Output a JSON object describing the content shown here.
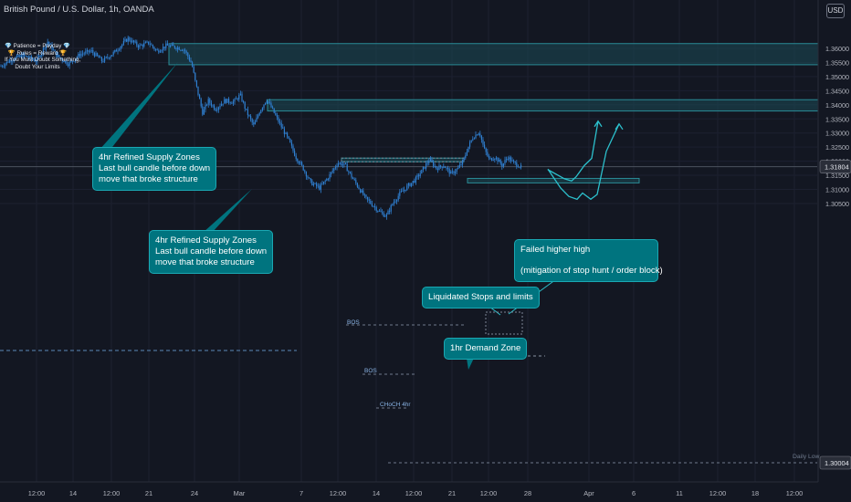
{
  "header": {
    "symbol_title": "British Pound / U.S. Dollar, 1h, OANDA",
    "currency_label": "USD"
  },
  "motto": {
    "line1": "💎 Patience = Payday 💎",
    "line2": "🏆 Rules = Reward 🏆",
    "line3": "If You Must Doubt Something,",
    "line4": "Doubt Your Limits"
  },
  "annotations": {
    "supply_zone_1": {
      "line1": "4hr Refined Supply Zones",
      "line2": "Last bull candle before down",
      "line3": "move that broke structure"
    },
    "supply_zone_2": {
      "line1": "4hr Refined Supply Zones",
      "line2": "Last bull candle before down",
      "line3": "move that broke structure"
    },
    "failed_higher_high": {
      "line1": "Failed higher high",
      "line2": "(mitigation of stop hunt / order block)"
    },
    "liquidated_stops": "Liquidated Stops and limits",
    "demand_zone": "1hr Demand Zone",
    "bos_1": "BOS",
    "bos_2": "BOS",
    "choch": "CHoCH 4hr",
    "stops_marker": "$ $ $",
    "daily_low": "Daily Low"
  },
  "colors": {
    "background": "#131722",
    "candle": "#2f7fd0",
    "zone_fill": "#1b4a55",
    "zone_border": "#2a8c97",
    "callout": "#00747f",
    "arrow": "#2cc0cc",
    "current_price": "#4c525e",
    "dashed_level": "#5b88b8"
  },
  "chart_data": {
    "type": "candlestick",
    "title": "British Pound / U.S. Dollar, 1h, OANDA",
    "price_axis": {
      "ticks": [
        "1.36000",
        "1.35500",
        "1.35000",
        "1.34500",
        "1.34000",
        "1.33500",
        "1.33000",
        "1.32500",
        "1.32000",
        "1.31500",
        "1.31000",
        "1.30500"
      ],
      "range": [
        1.2975,
        1.3665
      ],
      "current_price": "1.31804",
      "low_label": "1.30004"
    },
    "time_axis": {
      "labels": [
        "12:00",
        "14",
        "12:00",
        "21",
        "24",
        "Mar",
        "7",
        "12:00",
        "14",
        "12:00",
        "21",
        "12:00",
        "28",
        "Apr",
        "6",
        "11",
        "12:00",
        "18",
        "12:00"
      ]
    },
    "price_path": [
      [
        0,
        1.3535
      ],
      [
        12,
        1.356
      ],
      [
        25,
        1.3575
      ],
      [
        40,
        1.3555
      ],
      [
        52,
        1.3625
      ],
      [
        62,
        1.3575
      ],
      [
        75,
        1.3545
      ],
      [
        88,
        1.358
      ],
      [
        100,
        1.359
      ],
      [
        112,
        1.3555
      ],
      [
        125,
        1.3585
      ],
      [
        140,
        1.3635
      ],
      [
        152,
        1.3608
      ],
      [
        163,
        1.362
      ],
      [
        172,
        1.359
      ],
      [
        182,
        1.361
      ],
      [
        192,
        1.3605
      ],
      [
        202,
        1.3595
      ],
      [
        210,
        1.3545
      ],
      [
        214,
        1.348
      ],
      [
        218,
        1.3425
      ],
      [
        222,
        1.337
      ],
      [
        228,
        1.3415
      ],
      [
        236,
        1.3385
      ],
      [
        246,
        1.3415
      ],
      [
        256,
        1.341
      ],
      [
        263,
        1.3435
      ],
      [
        270,
        1.3375
      ],
      [
        278,
        1.3325
      ],
      [
        284,
        1.3375
      ],
      [
        292,
        1.342
      ],
      [
        298,
        1.3385
      ],
      [
        306,
        1.3335
      ],
      [
        316,
        1.3275
      ],
      [
        324,
        1.3215
      ],
      [
        332,
        1.3175
      ],
      [
        340,
        1.3125
      ],
      [
        350,
        1.3105
      ],
      [
        360,
        1.3145
      ],
      [
        370,
        1.3195
      ],
      [
        378,
        1.3185
      ],
      [
        385,
        1.3145
      ],
      [
        392,
        1.311
      ],
      [
        400,
        1.307
      ],
      [
        408,
        1.3045
      ],
      [
        416,
        1.302
      ],
      [
        423,
        1.3005
      ],
      [
        430,
        1.305
      ],
      [
        438,
        1.3085
      ],
      [
        446,
        1.311
      ],
      [
        455,
        1.3135
      ],
      [
        462,
        1.3165
      ],
      [
        470,
        1.3205
      ],
      [
        478,
        1.3175
      ],
      [
        486,
        1.3185
      ],
      [
        494,
        1.3155
      ],
      [
        502,
        1.3175
      ],
      [
        508,
        1.3205
      ],
      [
        512,
        1.3245
      ],
      [
        518,
        1.3285
      ],
      [
        525,
        1.3305
      ],
      [
        530,
        1.3245
      ],
      [
        536,
        1.3205
      ],
      [
        542,
        1.3215
      ],
      [
        550,
        1.3185
      ],
      [
        556,
        1.3215
      ],
      [
        562,
        1.3195
      ],
      [
        568,
        1.3185
      ],
      [
        572,
        1.3175
      ]
    ],
    "zones": [
      {
        "name": "4hr Refined Supply Zone",
        "x0": 185,
        "x1": 932,
        "top": 1.3617,
        "bottom": 1.3542
      },
      {
        "name": "4hr Refined Supply Zone",
        "x0": 293,
        "x1": 932,
        "top": 1.3418,
        "bottom": 1.3378
      },
      {
        "name": "BOS Zone",
        "x0": 374,
        "x1": 508,
        "top": 1.3211,
        "bottom": 1.3198
      },
      {
        "name": "1hr Demand Zone",
        "x0": 512,
        "x1": 700,
        "top": 1.3139,
        "bottom": 1.3123
      }
    ],
    "projection": {
      "lower_path": [
        [
          600,
          1.317
        ],
        [
          618,
          1.3138
        ],
        [
          626,
          1.313
        ],
        [
          631,
          1.3145
        ],
        [
          640,
          1.3185
        ],
        [
          648,
          1.321
        ],
        [
          655,
          1.3342
        ]
      ],
      "upper_path": [
        [
          600,
          1.3172
        ],
        [
          614,
          1.3105
        ],
        [
          623,
          1.3075
        ],
        [
          632,
          1.3065
        ],
        [
          638,
          1.3087
        ],
        [
          647,
          1.3065
        ],
        [
          654,
          1.3082
        ],
        [
          664,
          1.3235
        ],
        [
          678,
          1.3332
        ]
      ]
    }
  }
}
